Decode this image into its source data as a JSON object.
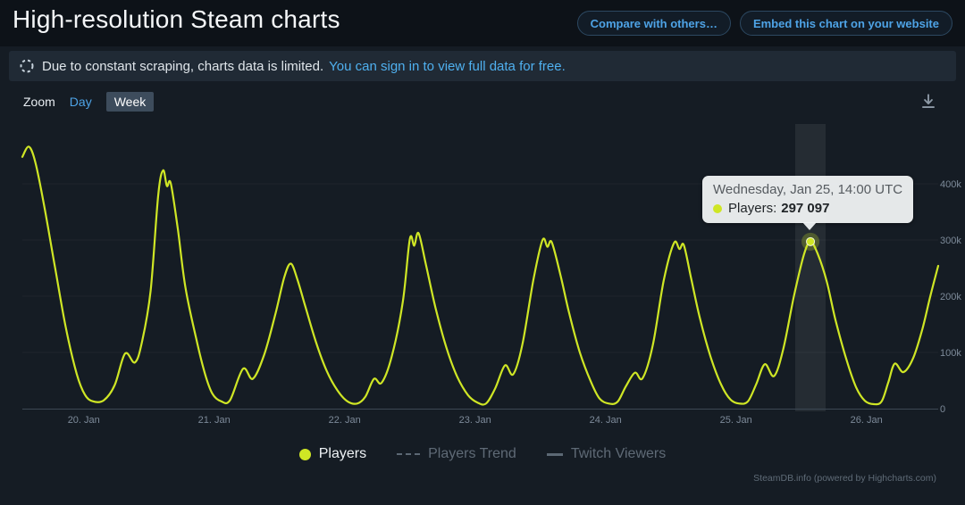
{
  "header": {
    "title": "High-resolution Steam charts",
    "buttons": [
      {
        "label": "Compare with others…"
      },
      {
        "label": "Embed this chart on your website"
      }
    ]
  },
  "notice": {
    "text": "Due to constant scraping, charts data is limited.",
    "link": "You can sign in to view full data for free."
  },
  "toolbar": {
    "zoom_label": "Zoom",
    "options": [
      {
        "label": "Day",
        "selected": false
      },
      {
        "label": "Week",
        "selected": true
      }
    ]
  },
  "tooltip": {
    "datetime": "Wednesday, Jan 25, 14:00 UTC",
    "series_label": "Players:",
    "value": "297 097"
  },
  "legend": {
    "items": [
      {
        "label": "Players",
        "enabled": true,
        "marker": "dot",
        "color": "#cfe625"
      },
      {
        "label": "Players Trend",
        "enabled": false,
        "marker": "dashed-line"
      },
      {
        "label": "Twitch Viewers",
        "enabled": false,
        "marker": "solid-line"
      }
    ]
  },
  "footer": {
    "credit": "SteamDB.info (powered by Highcharts.com)"
  },
  "colors": {
    "accent": "#cfe625",
    "link_blue": "#4ea3e6",
    "page_bg": "#151c24",
    "notice_bg": "#202a35",
    "tooltip_bg": "#f0f3f4"
  },
  "chart_data": {
    "type": "line",
    "title": "High-resolution Steam charts",
    "xlabel": "",
    "ylabel": "Players",
    "ylim": [
      0,
      500
    ],
    "x_hours_total": 168.5,
    "grid": "off",
    "legend_position": "bottom",
    "units": "concurrent players (thousands)",
    "y_ticks": [
      {
        "label": "400k",
        "value": 400
      },
      {
        "label": "300k",
        "value": 300
      },
      {
        "label": "200k",
        "value": 200
      },
      {
        "label": "100k",
        "value": 100
      },
      {
        "label": "0",
        "value": 0
      }
    ],
    "x_ticks": [
      {
        "label": "20. Jan",
        "hour": 11.3
      },
      {
        "label": "21. Jan",
        "hour": 35.3
      },
      {
        "label": "22. Jan",
        "hour": 59.3
      },
      {
        "label": "23. Jan",
        "hour": 83.3
      },
      {
        "label": "24. Jan",
        "hour": 107.3
      },
      {
        "label": "25. Jan",
        "hour": 131.3
      },
      {
        "label": "26. Jan",
        "hour": 155.3
      }
    ],
    "series": [
      {
        "name": "Players",
        "color": "#cfe625",
        "points": [
          [
            0,
            448
          ],
          [
            1.2,
            466
          ],
          [
            2.4,
            438
          ],
          [
            4,
            362
          ],
          [
            6,
            252
          ],
          [
            8,
            144
          ],
          [
            10,
            62
          ],
          [
            11.5,
            25
          ],
          [
            13,
            13
          ],
          [
            15,
            15
          ],
          [
            17,
            42
          ],
          [
            18.9,
            98
          ],
          [
            20.7,
            82
          ],
          [
            22,
            118
          ],
          [
            23.6,
            210
          ],
          [
            25,
            380
          ],
          [
            25.9,
            424
          ],
          [
            26.6,
            396
          ],
          [
            27.3,
            401
          ],
          [
            28.6,
            320
          ],
          [
            30,
            216
          ],
          [
            32,
            124
          ],
          [
            33.6,
            62
          ],
          [
            35,
            26
          ],
          [
            36.6,
            13
          ],
          [
            38.2,
            15
          ],
          [
            40.6,
            71
          ],
          [
            42.4,
            53
          ],
          [
            44.5,
            96
          ],
          [
            46.6,
            170
          ],
          [
            48.2,
            234
          ],
          [
            49.4,
            258
          ],
          [
            50.6,
            230
          ],
          [
            52,
            184
          ],
          [
            54,
            119
          ],
          [
            56,
            67
          ],
          [
            58,
            32
          ],
          [
            59.8,
            13
          ],
          [
            61.6,
            9
          ],
          [
            63.1,
            21
          ],
          [
            64.7,
            53
          ],
          [
            66.1,
            46
          ],
          [
            68,
            94
          ],
          [
            70,
            190
          ],
          [
            71.3,
            302
          ],
          [
            72.1,
            290
          ],
          [
            72.9,
            312
          ],
          [
            74.3,
            254
          ],
          [
            76,
            180
          ],
          [
            78,
            109
          ],
          [
            80,
            57
          ],
          [
            82,
            24
          ],
          [
            83.7,
            11
          ],
          [
            85.3,
            9
          ],
          [
            87,
            36
          ],
          [
            88.8,
            77
          ],
          [
            90.3,
            61
          ],
          [
            92,
            114
          ],
          [
            94,
            228
          ],
          [
            95.7,
            300
          ],
          [
            96.6,
            288
          ],
          [
            97.4,
            296
          ],
          [
            99,
            238
          ],
          [
            100.6,
            170
          ],
          [
            102.6,
            99
          ],
          [
            104.6,
            48
          ],
          [
            106.2,
            18
          ],
          [
            107.9,
            9
          ],
          [
            109.5,
            12
          ],
          [
            111,
            39
          ],
          [
            112.7,
            64
          ],
          [
            114.1,
            54
          ],
          [
            116,
            113
          ],
          [
            118,
            228
          ],
          [
            119.9,
            295
          ],
          [
            120.9,
            284
          ],
          [
            121.7,
            291
          ],
          [
            123,
            234
          ],
          [
            124.6,
            163
          ],
          [
            126.6,
            93
          ],
          [
            128.6,
            42
          ],
          [
            130.3,
            16
          ],
          [
            131.9,
            9
          ],
          [
            133.5,
            13
          ],
          [
            135,
            43
          ],
          [
            136.6,
            79
          ],
          [
            138.3,
            58
          ],
          [
            140,
            106
          ],
          [
            142,
            202
          ],
          [
            143.8,
            274
          ],
          [
            145,
            297
          ],
          [
            146.3,
            276
          ],
          [
            148,
            226
          ],
          [
            149.6,
            158
          ],
          [
            151.6,
            88
          ],
          [
            153.4,
            38
          ],
          [
            155,
            14
          ],
          [
            156.7,
            8
          ],
          [
            158.1,
            13
          ],
          [
            159.3,
            46
          ],
          [
            160.5,
            80
          ],
          [
            162.1,
            65
          ],
          [
            163.9,
            90
          ],
          [
            165.6,
            142
          ],
          [
            167.1,
            202
          ],
          [
            168.5,
            254
          ]
        ]
      },
      {
        "name": "Players Trend",
        "color": "#5c6874",
        "hidden": true,
        "points": []
      },
      {
        "name": "Twitch Viewers",
        "color": "#5c6874",
        "hidden": true,
        "points": []
      }
    ],
    "selected_point": {
      "series": "Players",
      "hour": 145,
      "value": 297.097,
      "display": "297 097",
      "datetime": "Wednesday, Jan 25, 14:00 UTC"
    }
  }
}
